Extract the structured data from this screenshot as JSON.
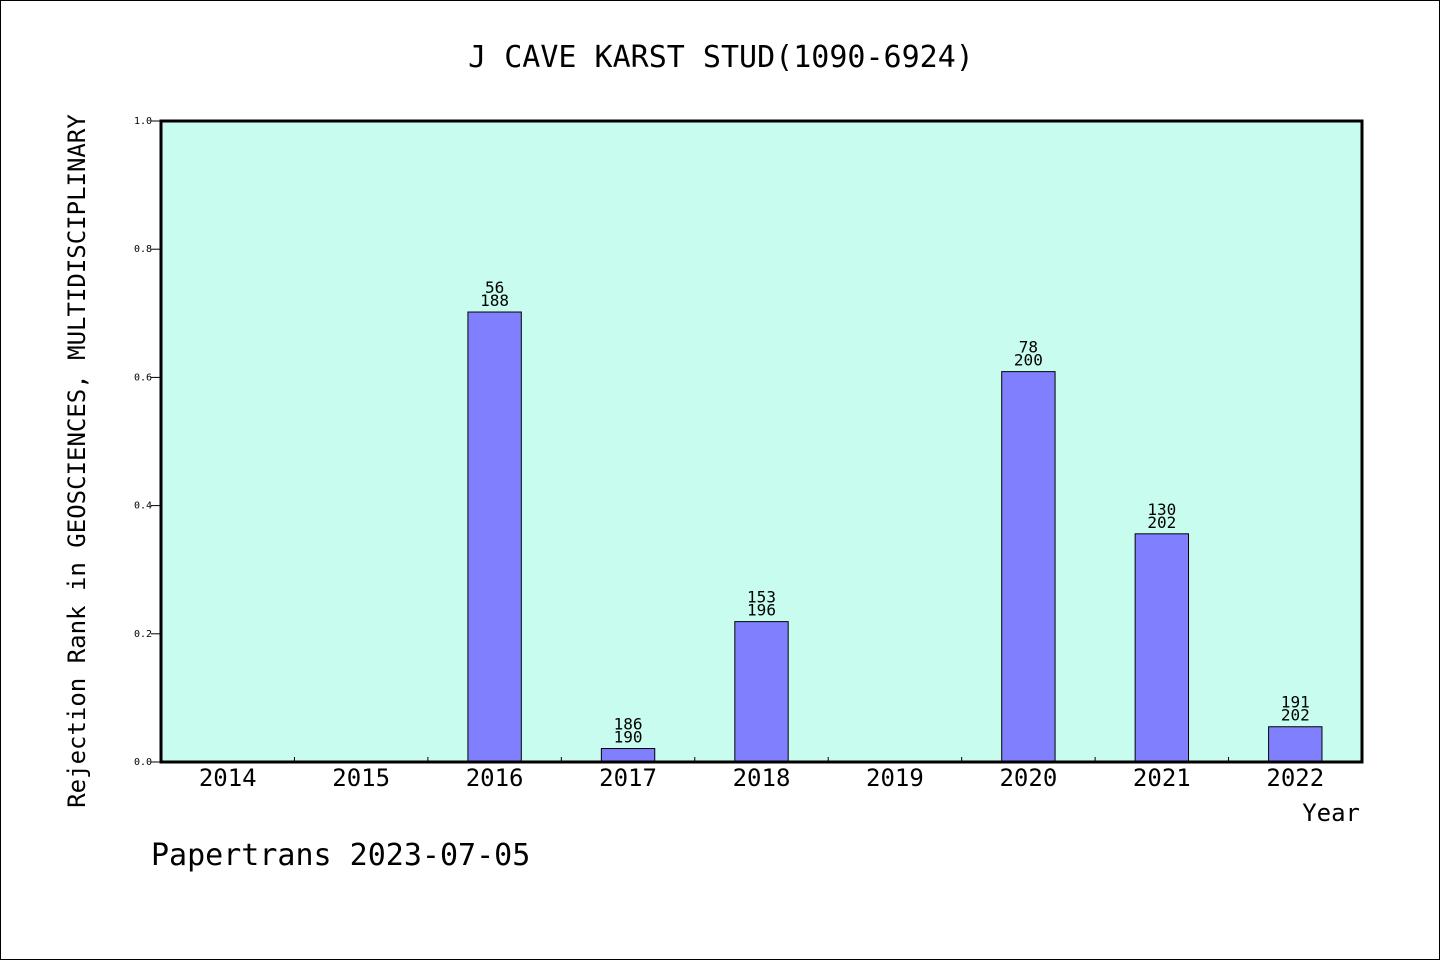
{
  "chart_data": {
    "type": "bar",
    "title": "J CAVE KARST STUD(1090-6924)",
    "xlabel": "Year",
    "ylabel": "Rejection Rank in GEOSCIENCES, MULTIDISCIPLINARY",
    "ylim": [
      0,
      1.0
    ],
    "yticks": [
      "0.0",
      "0.2",
      "0.4",
      "0.6",
      "0.8",
      "1.0"
    ],
    "categories": [
      "2014",
      "2015",
      "2016",
      "2017",
      "2018",
      "2019",
      "2020",
      "2021",
      "2022"
    ],
    "values": [
      null,
      null,
      0.702,
      0.021,
      0.219,
      null,
      0.609,
      0.356,
      0.055
    ],
    "data_labels": [
      null,
      null,
      [
        "56",
        "188"
      ],
      [
        "186",
        "190"
      ],
      [
        "153",
        "196"
      ],
      null,
      [
        "78",
        "200"
      ],
      [
        "130",
        "202"
      ],
      [
        "191",
        "202"
      ]
    ],
    "grid": false,
    "colors": {
      "plot_background": "#c8fcee",
      "bar_fill": "#8080ff",
      "bar_stroke": "#000000"
    }
  },
  "footer": "Papertrans 2023-07-05"
}
